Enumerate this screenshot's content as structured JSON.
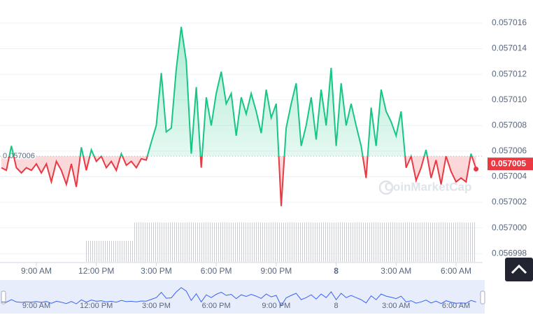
{
  "chart_data": {
    "type": "line",
    "xlim": [
      7.18,
      31.33
    ],
    "ylim": [
      0.0569973,
      0.0570178
    ],
    "xticks": [
      {
        "value": 9,
        "label": "9:00 AM"
      },
      {
        "value": 12,
        "label": "12:00 PM"
      },
      {
        "value": 15,
        "label": "3:00 PM"
      },
      {
        "value": 18,
        "label": "6:00 PM"
      },
      {
        "value": 21,
        "label": "9:00 PM"
      },
      {
        "value": 24,
        "label": "8"
      },
      {
        "value": 27,
        "label": "3:00 AM"
      },
      {
        "value": 30,
        "label": "6:00 AM"
      }
    ],
    "yticks": [
      0.056998,
      {
        "value": 0.057,
        "label": "0.057000"
      },
      0.057002,
      0.057004,
      0.057006,
      0.057008,
      {
        "value": 0.05701,
        "label": "0.057010"
      },
      0.057012,
      0.057014,
      0.057016
    ],
    "grid": true,
    "baseline": {
      "value": 0.0570056,
      "label": "0.057006"
    },
    "last_price": 0.057005,
    "color_up": "#16c784",
    "color_down": "#ea3943",
    "watermark": "CoinMarketCap",
    "x": [
      7.25,
      7.5,
      7.75,
      8,
      8.25,
      8.5,
      8.75,
      9,
      9.25,
      9.5,
      9.75,
      10,
      10.25,
      10.5,
      10.75,
      11,
      11.25,
      11.5,
      11.75,
      12,
      12.25,
      12.5,
      12.75,
      13,
      13.25,
      13.5,
      13.75,
      14,
      14.25,
      14.5,
      14.75,
      15,
      15.25,
      15.5,
      15.75,
      16,
      16.25,
      16.5,
      16.75,
      17,
      17.25,
      17.5,
      17.75,
      18,
      18.25,
      18.5,
      18.75,
      19,
      19.25,
      19.5,
      19.75,
      20,
      20.25,
      20.5,
      20.75,
      21,
      21.25,
      21.5,
      21.75,
      22,
      22.25,
      22.5,
      22.75,
      23,
      23.25,
      23.5,
      23.75,
      24,
      24.25,
      24.5,
      24.75,
      25,
      25.25,
      25.5,
      25.75,
      26,
      26.25,
      26.5,
      26.75,
      27,
      27.25,
      27.5,
      27.75,
      28,
      28.25,
      28.5,
      28.75,
      29,
      29.25,
      29.5,
      29.75,
      30,
      30.25,
      30.5,
      30.75,
      31
    ],
    "values": [
      0.0570047,
      0.0570045,
      0.0570064,
      0.0570047,
      0.0570043,
      0.0570047,
      0.0570045,
      0.057005,
      0.0570043,
      0.057005,
      0.0570036,
      0.0570052,
      0.0570045,
      0.0570034,
      0.057005,
      0.0570032,
      0.0570063,
      0.0570045,
      0.0570061,
      0.0570052,
      0.0570056,
      0.0570047,
      0.0570052,
      0.0570045,
      0.0570058,
      0.0570049,
      0.0570052,
      0.0570047,
      0.0570054,
      0.0570053,
      0.0570067,
      0.057008,
      0.0570121,
      0.0570075,
      0.0570078,
      0.0570124,
      0.0570157,
      0.057013,
      0.0570058,
      0.057011,
      0.0570047,
      0.0570102,
      0.057008,
      0.0570105,
      0.0570122,
      0.0570097,
      0.0570105,
      0.0570072,
      0.0570102,
      0.0570089,
      0.0570105,
      0.0570091,
      0.0570074,
      0.0570108,
      0.0570086,
      0.0570097,
      0.0570017,
      0.0570078,
      0.0570097,
      0.0570113,
      0.0570064,
      0.057008,
      0.0570102,
      0.0570069,
      0.0570108,
      0.057008,
      0.0570125,
      0.0570064,
      0.0570113,
      0.057008,
      0.0570097,
      0.057008,
      0.0570064,
      0.0570039,
      0.0570094,
      0.0570064,
      0.0570108,
      0.0570091,
      0.0570083,
      0.0570072,
      0.0570091,
      0.0570047,
      0.0570056,
      0.0570037,
      0.0570047,
      0.0570061,
      0.0570039,
      0.0570053,
      0.0570034,
      0.0570056,
      0.0570044,
      0.0570036,
      0.0570039,
      0.0570036,
      0.0570058,
      0.0570046
    ]
  }
}
